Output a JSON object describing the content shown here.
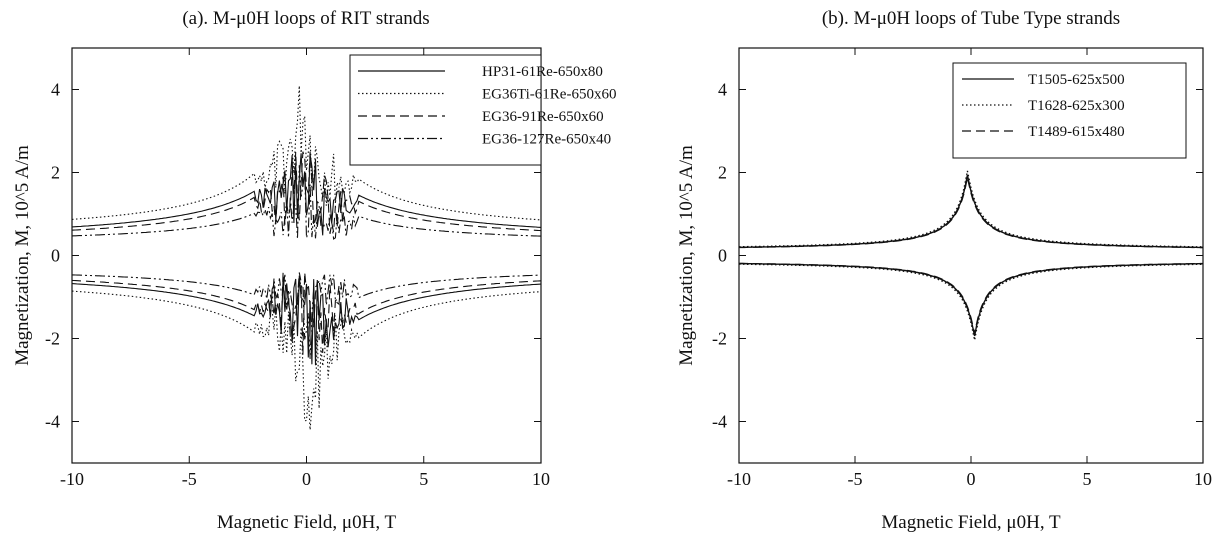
{
  "chart_data": [
    {
      "id": "a",
      "type": "line",
      "title": "(a). M-μ0H loops of RIT strands",
      "xlabel": "Magnetic Field, μ0H, T",
      "ylabel": "Magnetization, M, 10^5 A/m",
      "xlim": [
        -10,
        10
      ],
      "ylim": [
        -5,
        5
      ],
      "xticks": [
        -10,
        -5,
        0,
        5,
        10
      ],
      "yticks": [
        -4,
        -2,
        0,
        2,
        4
      ],
      "grid": false,
      "legend_position": "top-right",
      "series": [
        {
          "name": "HP31-61Re-650x80",
          "style": "solid",
          "peak": 3.0,
          "tail": 0.3,
          "width": 1.8,
          "flux_jumps": true
        },
        {
          "name": "EG36Ti-61Re-650x60",
          "style": "dotted",
          "peak": 4.7,
          "tail": 0.45,
          "width": 1.2,
          "flux_jumps": true
        },
        {
          "name": "EG36-91Re-650x60",
          "style": "dashed",
          "peak": 3.2,
          "tail": 0.3,
          "width": 1.3,
          "flux_jumps": true
        },
        {
          "name": "EG36-127Re-650x40",
          "style": "dashdotdot",
          "peak": 2.6,
          "tail": 0.28,
          "width": 1.0,
          "flux_jumps": true
        }
      ]
    },
    {
      "id": "b",
      "type": "line",
      "title": "(b). M-μ0H loops of Tube Type strands",
      "xlabel": "Magnetic Field, μ0H, T",
      "ylabel": "Magnetization, M, 10^5 A/m",
      "xlim": [
        -10,
        10
      ],
      "ylim": [
        -5,
        5
      ],
      "xticks": [
        -10,
        -5,
        0,
        5,
        10
      ],
      "yticks": [
        -4,
        -2,
        0,
        2,
        4
      ],
      "grid": false,
      "legend_position": "top-right",
      "series": [
        {
          "name": "T1505-625x500",
          "style": "solid",
          "peak": 1.95,
          "tail": 0.12,
          "width": 0.5,
          "flux_jumps": false
        },
        {
          "name": "T1628-625x300",
          "style": "dotted",
          "peak": 2.05,
          "tail": 0.13,
          "width": 0.5,
          "flux_jumps": false
        },
        {
          "name": "T1489-615x480",
          "style": "dashed",
          "peak": 1.9,
          "tail": 0.12,
          "width": 0.5,
          "flux_jumps": false
        }
      ]
    }
  ]
}
